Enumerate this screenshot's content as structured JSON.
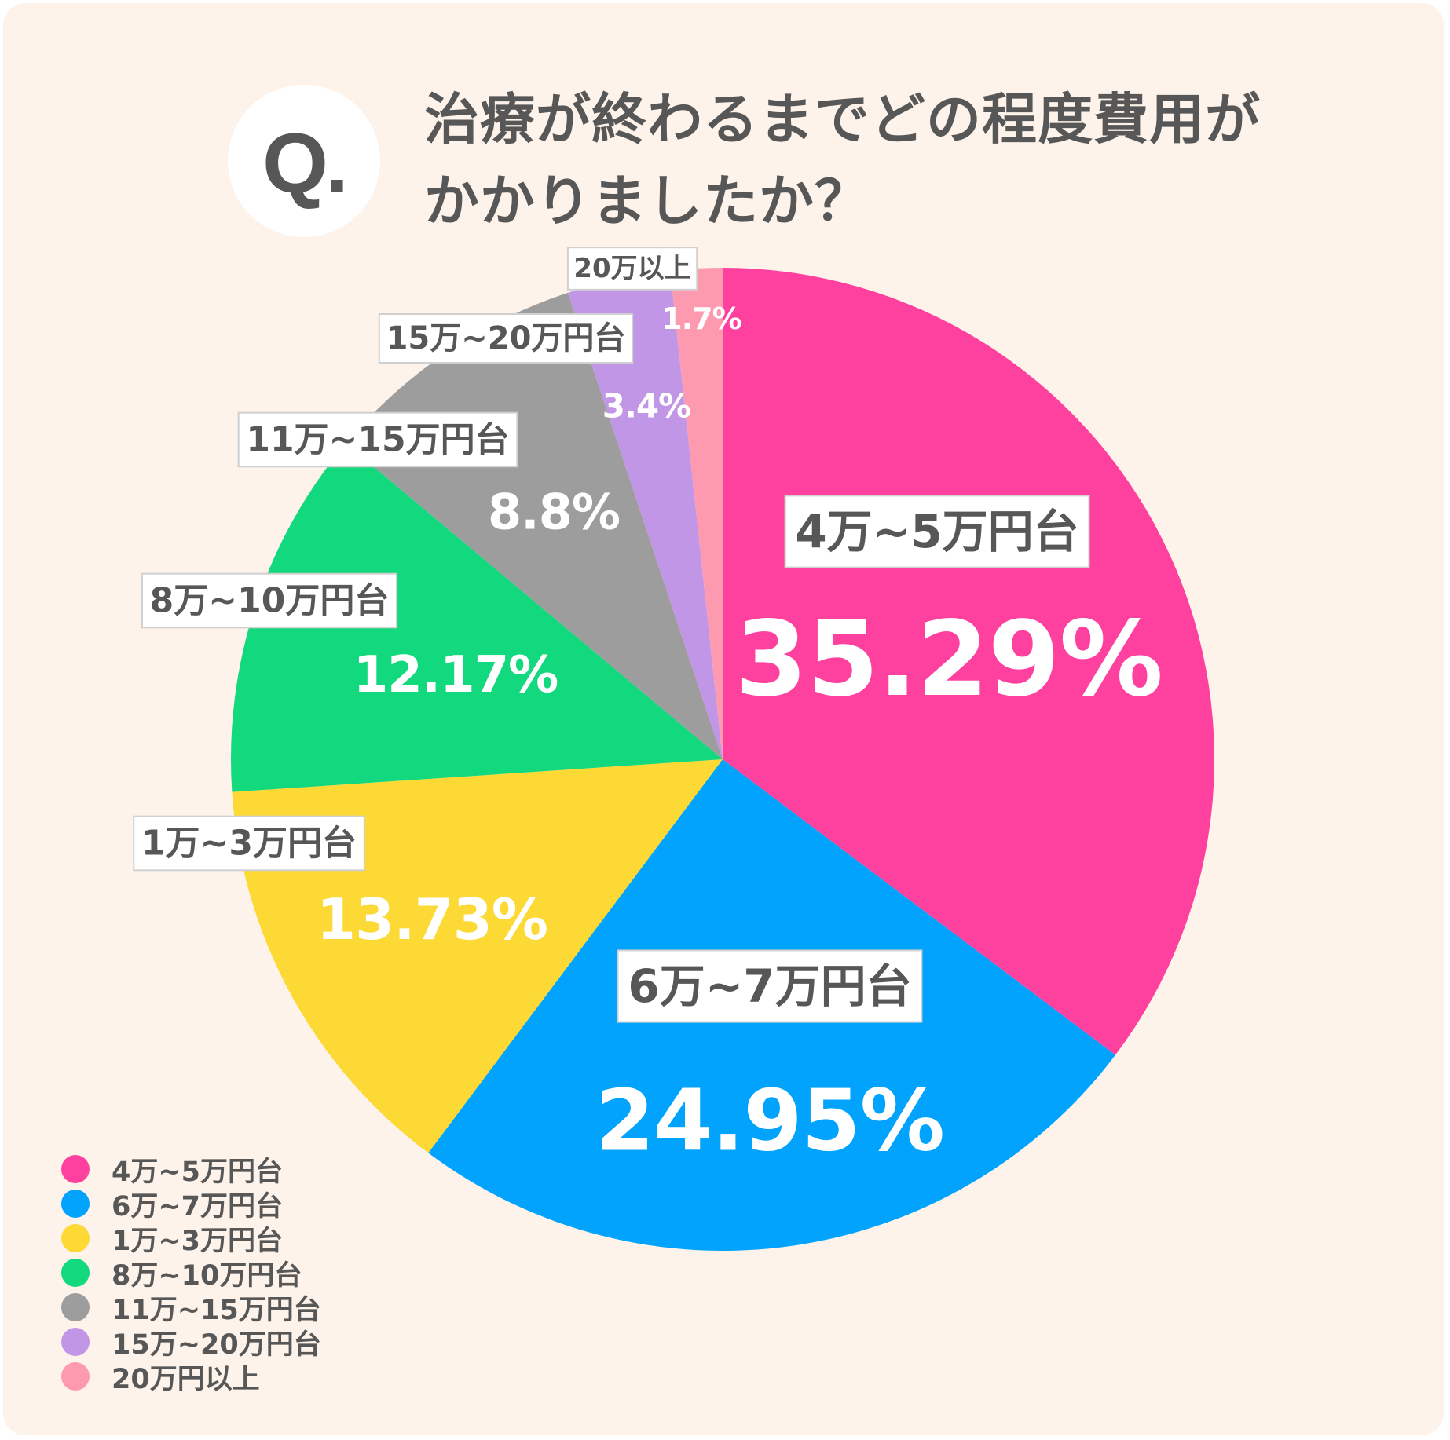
{
  "question": {
    "badge": "Q.",
    "title_line1": "治療が終わるまでどの程度費用が",
    "title_line2": "かかりましたか？"
  },
  "colors": {
    "background": "#fdf3ea",
    "text": "#575757"
  },
  "chart_data": {
    "type": "pie",
    "start_angle_deg": 0,
    "direction": "clockwise",
    "slices": [
      {
        "label": "4万~5万円台",
        "value": 35.29,
        "value_text": "35.29%",
        "color": "#fe419e"
      },
      {
        "label": "6万~7万円台",
        "value": 24.95,
        "value_text": "24.95%",
        "color": "#01a3fd"
      },
      {
        "label": "1万~3万円台",
        "value": 13.73,
        "value_text": "13.73%",
        "color": "#fcd934"
      },
      {
        "label": "8万~10万円台",
        "value": 12.17,
        "value_text": "12.17%",
        "color": "#12d87e"
      },
      {
        "label": "11万~15万円台",
        "value": 8.8,
        "value_text": "8.8%",
        "color": "#9d9d9d"
      },
      {
        "label": "15万~20万円台",
        "value": 3.4,
        "value_text": "3.4%",
        "color": "#c196e6"
      },
      {
        "label": "20万以上",
        "value": 1.7,
        "value_text": "1.7%",
        "color": "#fe9ab0"
      }
    ],
    "legend": {
      "placement": "bottom-left",
      "items": [
        {
          "label": "4万~5万円台",
          "color": "#fe419e"
        },
        {
          "label": "6万~7万円台",
          "color": "#01a3fd"
        },
        {
          "label": "1万~3万円台",
          "color": "#fcd934"
        },
        {
          "label": "8万~10万円台",
          "color": "#12d87e"
        },
        {
          "label": "11万~15万円台",
          "color": "#9d9d9d"
        },
        {
          "label": "15万~20万円台",
          "color": "#c196e6"
        },
        {
          "label": "20万円以上",
          "color": "#fe9ab0"
        }
      ]
    }
  }
}
